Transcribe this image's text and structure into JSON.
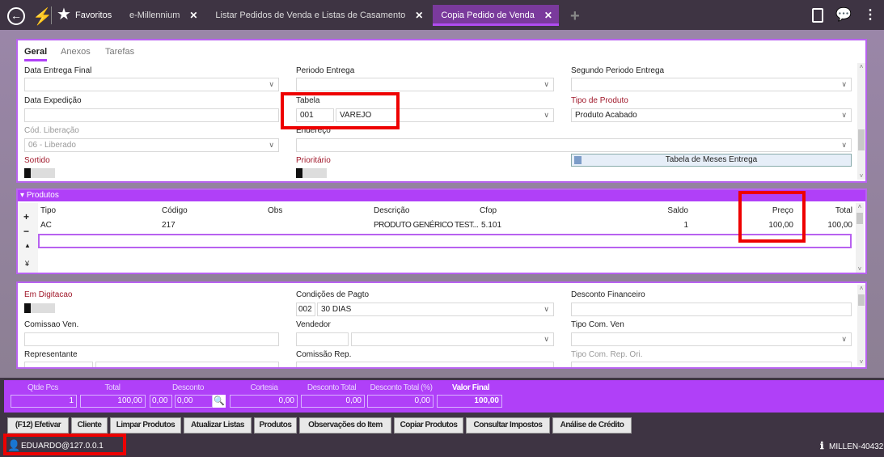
{
  "topbar": {
    "favorites": "Favoritos",
    "tabs": [
      {
        "label": "e-Millennium"
      },
      {
        "label": "Listar Pedidos de Venda e Listas de Casamento"
      },
      {
        "label": "Copia Pedido de Venda",
        "active": true
      }
    ],
    "close_glyph": "✕",
    "add_glyph": "+"
  },
  "form_tabs": [
    "Geral",
    "Anexos",
    "Tarefas"
  ],
  "general": {
    "data_entrega_final": {
      "label": "Data Entrega Final",
      "value": ""
    },
    "periodo_entrega": {
      "label": "Periodo Entrega",
      "value": ""
    },
    "segundo_periodo": {
      "label": "Segundo Periodo Entrega",
      "value": ""
    },
    "data_expedicao": {
      "label": "Data Expedição",
      "value": ""
    },
    "tabela": {
      "label": "Tabela",
      "code": "001",
      "value": "VAREJO"
    },
    "tipo_produto": {
      "label": "Tipo de Produto",
      "value": "Produto Acabado"
    },
    "cod_liberacao": {
      "label": "Cód. Liberação",
      "value": "06 - Liberado"
    },
    "endereco": {
      "label": "Endereço",
      "value": ""
    },
    "sortido": {
      "label": "Sortido",
      "on": false
    },
    "prioritario": {
      "label": "Prioritário",
      "on": false
    },
    "meses_button": "Tabela de Meses Entrega"
  },
  "produtos": {
    "title": "Produtos",
    "columns": [
      "Tipo",
      "Código",
      "Obs",
      "Descrição",
      "Cfop",
      "Saldo",
      "Preço",
      "Total"
    ],
    "rows": [
      [
        "AC",
        "217",
        "",
        "PRODUTO GENÉRICO TEST...",
        "5.101",
        "1",
        "100,00",
        "100,00"
      ]
    ],
    "side": [
      "+",
      "−",
      "▲",
      "¥"
    ]
  },
  "details": {
    "em_digitacao": {
      "label": "Em Digitacao",
      "on": false
    },
    "cond_pagto": {
      "label": "Condições de Pagto",
      "code": "002",
      "value": "30 DIAS"
    },
    "desconto_fin": {
      "label": "Desconto Financeiro",
      "value": ""
    },
    "comissao_ven": {
      "label": "Comissao Ven.",
      "value": ""
    },
    "vendedor": {
      "label": "Vendedor",
      "value": ""
    },
    "tipo_com_ven": {
      "label": "Tipo Com. Ven",
      "value": ""
    },
    "representante": {
      "label": "Representante"
    },
    "comissao_rep": {
      "label": "Comissão Rep."
    },
    "tipo_com_rep": {
      "label": "Tipo Com. Rep. Ori."
    }
  },
  "totals": {
    "qtde": {
      "label": "Qtde Pcs",
      "value": "1"
    },
    "total": {
      "label": "Total",
      "value": "100,00"
    },
    "desconto": {
      "label": "Desconto",
      "pct": "0,00",
      "value": "0,00"
    },
    "cortesia": {
      "label": "Cortesia",
      "value": "0,00"
    },
    "desc_total": {
      "label": "Desconto Total",
      "value": "0,00"
    },
    "desc_total_pct": {
      "label": "Desconto Total (%)",
      "value": "0,00"
    },
    "valor_final": {
      "label": "Valor Final",
      "value": "100,00"
    }
  },
  "actions": [
    "(F12) Efetivar",
    "Cliente",
    "Limpar Produtos",
    "Atualizar Listas",
    "Produtos",
    "Observações do Item",
    "Copiar Produtos",
    "Consultar Impostos",
    "Análise de Crédito"
  ],
  "status": {
    "user": "EDUARDO@127.0.0.1",
    "version": "MILLEN-40432"
  },
  "colors": {
    "accent": "#b040f8",
    "dark": "#3e3443",
    "highlight": "#ee0000"
  }
}
